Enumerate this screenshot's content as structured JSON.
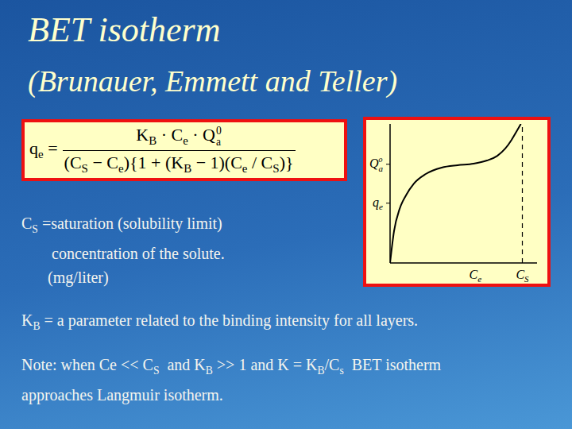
{
  "title": "BET isotherm",
  "subtitle": "(Brunauer, Emmett and Teller)",
  "formula": {
    "lhs": [
      {
        "t": "q"
      },
      {
        "sub": "e"
      },
      {
        "t": " ="
      }
    ],
    "numerator": [
      {
        "t": "K"
      },
      {
        "sub": "B"
      },
      {
        "t": " · C"
      },
      {
        "sub": "e"
      },
      {
        "t": " · Q"
      },
      {
        "sup": "0",
        "sub": "a"
      }
    ],
    "denominator": [
      {
        "t": "(C"
      },
      {
        "sub": "S"
      },
      {
        "t": " − C"
      },
      {
        "sub": "e"
      },
      {
        "t": "){1 + (K"
      },
      {
        "sub": "B"
      },
      {
        "t": " − 1)(C"
      },
      {
        "sub": "e"
      },
      {
        "t": " / C"
      },
      {
        "sub": "S"
      },
      {
        "t": ")}"
      }
    ]
  },
  "definitions": [
    {
      "symbol": "C",
      "sub": "S",
      "lines": [
        "=saturation (solubility limit)",
        "concentration of the solute.",
        "(mg/liter)"
      ]
    },
    {
      "symbol": "K",
      "sub": "B",
      "lines": [
        " = a parameter related to the binding intensity for all layers."
      ]
    }
  ],
  "note": [
    [
      {
        "t": "Note: when Ce << C"
      },
      {
        "sub": "S"
      },
      {
        "t": "  and K"
      },
      {
        "sub": "B"
      },
      {
        "t": " >> 1 and K = K"
      },
      {
        "sub": "B"
      },
      {
        "t": "/C"
      },
      {
        "sub": "s"
      },
      {
        "t": "  BET isotherm"
      }
    ],
    [
      {
        "t": "approaches Langmuir isotherm."
      }
    ]
  ],
  "chart_data": {
    "type": "line",
    "color": "#000000",
    "marker": "none",
    "grid": false,
    "x": [
      0,
      2.7,
      6.5,
      10.8,
      16.2,
      24.3,
      35.1,
      45.9,
      56.8,
      65.9,
      73,
      78.4,
      82.7,
      86.5,
      89
    ],
    "values": [
      0,
      22.9,
      38.9,
      48.6,
      57.1,
      64,
      68.6,
      70.3,
      71.4,
      73.7,
      77.1,
      82.3,
      88.6,
      95.4,
      100
    ],
    "xlim": [
      0,
      100
    ],
    "ylim": [
      0,
      100
    ],
    "xticks": [
      {
        "value": 58,
        "label": "C",
        "sub": "e"
      },
      {
        "value": 90,
        "label": "C",
        "sub": "S"
      }
    ],
    "yticks": [
      {
        "value": 43,
        "label": "q",
        "sub": "e"
      },
      {
        "value": 71,
        "label": "Q",
        "sup": "o",
        "sub": "a"
      }
    ],
    "reference_lines": [
      {
        "x": 90,
        "line_style": "dashed"
      }
    ]
  }
}
